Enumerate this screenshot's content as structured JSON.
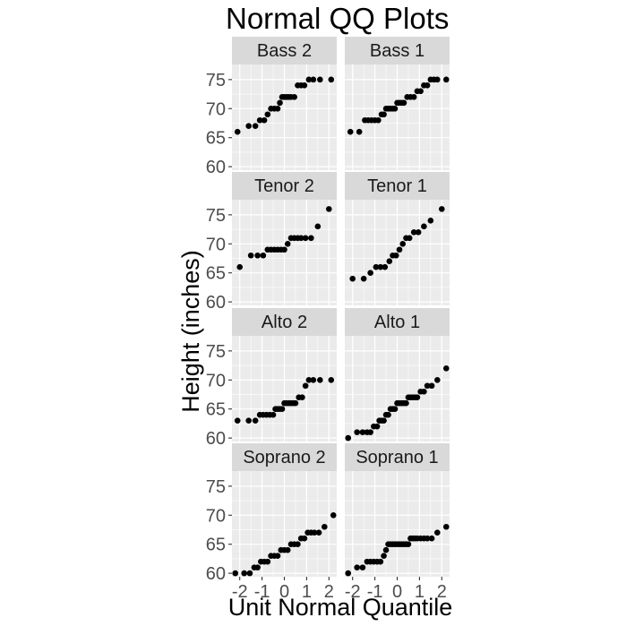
{
  "chart_data": {
    "type": "scatter",
    "title": "Normal QQ Plots",
    "xlabel": "Unit Normal Quantile",
    "ylabel": "Height (inches)",
    "xlim": [
      -2.35,
      2.35
    ],
    "ylim": [
      59.4,
      77.6
    ],
    "x_ticks": [
      -2,
      -1,
      0,
      1,
      2
    ],
    "x_tick_labels": [
      "-2",
      "-1",
      "0",
      "1",
      "2"
    ],
    "y_ticks": [
      60,
      65,
      70,
      75
    ],
    "y_tick_labels": [
      "60",
      "65",
      "70",
      "75"
    ],
    "grid": true,
    "layout": "facets 4 rows x 2 columns, shared axes",
    "colors": {
      "panel_background": "#ebebeb",
      "grid": "#ffffff",
      "strip_background": "#d9d9d9",
      "point": "#000000"
    },
    "facets": [
      {
        "label": "Bass 2",
        "points": [
          {
            "x": -2.1,
            "y": 66
          },
          {
            "x": -1.6,
            "y": 67
          },
          {
            "x": -1.3,
            "y": 67
          },
          {
            "x": -1.1,
            "y": 68
          },
          {
            "x": -0.9,
            "y": 68
          },
          {
            "x": -0.75,
            "y": 69
          },
          {
            "x": -0.6,
            "y": 70
          },
          {
            "x": -0.45,
            "y": 70
          },
          {
            "x": -0.3,
            "y": 70
          },
          {
            "x": -0.2,
            "y": 71
          },
          {
            "x": -0.1,
            "y": 72
          },
          {
            "x": 0.0,
            "y": 72
          },
          {
            "x": 0.1,
            "y": 72
          },
          {
            "x": 0.2,
            "y": 72
          },
          {
            "x": 0.3,
            "y": 72
          },
          {
            "x": 0.45,
            "y": 72
          },
          {
            "x": 0.6,
            "y": 74
          },
          {
            "x": 0.75,
            "y": 74
          },
          {
            "x": 0.9,
            "y": 74
          },
          {
            "x": 1.1,
            "y": 75
          },
          {
            "x": 1.3,
            "y": 75
          },
          {
            "x": 1.6,
            "y": 75
          },
          {
            "x": 2.1,
            "y": 75
          }
        ]
      },
      {
        "label": "Bass 1",
        "points": [
          {
            "x": -2.1,
            "y": 66
          },
          {
            "x": -1.7,
            "y": 66
          },
          {
            "x": -1.45,
            "y": 68
          },
          {
            "x": -1.3,
            "y": 68
          },
          {
            "x": -1.15,
            "y": 68
          },
          {
            "x": -1.0,
            "y": 68
          },
          {
            "x": -0.85,
            "y": 68
          },
          {
            "x": -0.7,
            "y": 69
          },
          {
            "x": -0.6,
            "y": 69
          },
          {
            "x": -0.5,
            "y": 70
          },
          {
            "x": -0.4,
            "y": 70
          },
          {
            "x": -0.3,
            "y": 70
          },
          {
            "x": -0.2,
            "y": 70
          },
          {
            "x": -0.1,
            "y": 70
          },
          {
            "x": 0.0,
            "y": 71
          },
          {
            "x": 0.1,
            "y": 71
          },
          {
            "x": 0.2,
            "y": 71
          },
          {
            "x": 0.3,
            "y": 71
          },
          {
            "x": 0.45,
            "y": 72
          },
          {
            "x": 0.6,
            "y": 72
          },
          {
            "x": 0.75,
            "y": 72
          },
          {
            "x": 0.9,
            "y": 73
          },
          {
            "x": 1.05,
            "y": 73
          },
          {
            "x": 1.2,
            "y": 74
          },
          {
            "x": 1.35,
            "y": 74
          },
          {
            "x": 1.5,
            "y": 75
          },
          {
            "x": 1.65,
            "y": 75
          },
          {
            "x": 1.8,
            "y": 75
          },
          {
            "x": 2.2,
            "y": 75
          }
        ]
      },
      {
        "label": "Tenor 2",
        "points": [
          {
            "x": -2.0,
            "y": 66
          },
          {
            "x": -1.5,
            "y": 68
          },
          {
            "x": -1.2,
            "y": 68
          },
          {
            "x": -0.95,
            "y": 68
          },
          {
            "x": -0.75,
            "y": 69
          },
          {
            "x": -0.6,
            "y": 69
          },
          {
            "x": -0.45,
            "y": 69
          },
          {
            "x": -0.3,
            "y": 69
          },
          {
            "x": -0.15,
            "y": 69
          },
          {
            "x": 0.0,
            "y": 69
          },
          {
            "x": 0.15,
            "y": 70
          },
          {
            "x": 0.3,
            "y": 71
          },
          {
            "x": 0.45,
            "y": 71
          },
          {
            "x": 0.6,
            "y": 71
          },
          {
            "x": 0.75,
            "y": 71
          },
          {
            "x": 0.95,
            "y": 71
          },
          {
            "x": 1.2,
            "y": 71
          },
          {
            "x": 1.5,
            "y": 73
          },
          {
            "x": 2.0,
            "y": 76
          }
        ]
      },
      {
        "label": "Tenor 1",
        "points": [
          {
            "x": -2.0,
            "y": 64
          },
          {
            "x": -1.5,
            "y": 64
          },
          {
            "x": -1.2,
            "y": 65
          },
          {
            "x": -0.95,
            "y": 66
          },
          {
            "x": -0.75,
            "y": 66
          },
          {
            "x": -0.55,
            "y": 66
          },
          {
            "x": -0.35,
            "y": 67
          },
          {
            "x": -0.2,
            "y": 68
          },
          {
            "x": -0.05,
            "y": 68
          },
          {
            "x": 0.1,
            "y": 69
          },
          {
            "x": 0.25,
            "y": 70
          },
          {
            "x": 0.4,
            "y": 71
          },
          {
            "x": 0.55,
            "y": 71
          },
          {
            "x": 0.75,
            "y": 72
          },
          {
            "x": 0.95,
            "y": 72
          },
          {
            "x": 1.2,
            "y": 73
          },
          {
            "x": 1.5,
            "y": 74
          },
          {
            "x": 2.0,
            "y": 76
          }
        ]
      },
      {
        "label": "Alto 2",
        "points": [
          {
            "x": -2.1,
            "y": 63
          },
          {
            "x": -1.6,
            "y": 63
          },
          {
            "x": -1.3,
            "y": 63
          },
          {
            "x": -1.1,
            "y": 64
          },
          {
            "x": -0.95,
            "y": 64
          },
          {
            "x": -0.8,
            "y": 64
          },
          {
            "x": -0.65,
            "y": 64
          },
          {
            "x": -0.5,
            "y": 64
          },
          {
            "x": -0.4,
            "y": 65
          },
          {
            "x": -0.3,
            "y": 65
          },
          {
            "x": -0.2,
            "y": 65
          },
          {
            "x": -0.1,
            "y": 65
          },
          {
            "x": 0.0,
            "y": 66
          },
          {
            "x": 0.1,
            "y": 66
          },
          {
            "x": 0.2,
            "y": 66
          },
          {
            "x": 0.3,
            "y": 66
          },
          {
            "x": 0.4,
            "y": 66
          },
          {
            "x": 0.5,
            "y": 66
          },
          {
            "x": 0.65,
            "y": 67
          },
          {
            "x": 0.8,
            "y": 67
          },
          {
            "x": 0.95,
            "y": 69
          },
          {
            "x": 1.1,
            "y": 70
          },
          {
            "x": 1.3,
            "y": 70
          },
          {
            "x": 1.6,
            "y": 70
          },
          {
            "x": 2.1,
            "y": 70
          }
        ]
      },
      {
        "label": "Alto 1",
        "points": [
          {
            "x": -2.2,
            "y": 60
          },
          {
            "x": -1.8,
            "y": 61
          },
          {
            "x": -1.55,
            "y": 61
          },
          {
            "x": -1.35,
            "y": 61
          },
          {
            "x": -1.2,
            "y": 61
          },
          {
            "x": -1.05,
            "y": 62
          },
          {
            "x": -0.9,
            "y": 62
          },
          {
            "x": -0.8,
            "y": 63
          },
          {
            "x": -0.7,
            "y": 63
          },
          {
            "x": -0.6,
            "y": 63
          },
          {
            "x": -0.5,
            "y": 64
          },
          {
            "x": -0.4,
            "y": 64
          },
          {
            "x": -0.3,
            "y": 65
          },
          {
            "x": -0.2,
            "y": 65
          },
          {
            "x": -0.1,
            "y": 65
          },
          {
            "x": 0.0,
            "y": 66
          },
          {
            "x": 0.1,
            "y": 66
          },
          {
            "x": 0.2,
            "y": 66
          },
          {
            "x": 0.3,
            "y": 66
          },
          {
            "x": 0.4,
            "y": 66
          },
          {
            "x": 0.5,
            "y": 67
          },
          {
            "x": 0.6,
            "y": 67
          },
          {
            "x": 0.7,
            "y": 67
          },
          {
            "x": 0.8,
            "y": 67
          },
          {
            "x": 0.9,
            "y": 67
          },
          {
            "x": 1.05,
            "y": 68
          },
          {
            "x": 1.2,
            "y": 68
          },
          {
            "x": 1.35,
            "y": 69
          },
          {
            "x": 1.55,
            "y": 69
          },
          {
            "x": 1.8,
            "y": 70
          },
          {
            "x": 2.2,
            "y": 72
          }
        ]
      },
      {
        "label": "Soprano 2",
        "points": [
          {
            "x": -2.2,
            "y": 60
          },
          {
            "x": -1.8,
            "y": 60
          },
          {
            "x": -1.55,
            "y": 60
          },
          {
            "x": -1.35,
            "y": 61
          },
          {
            "x": -1.2,
            "y": 61
          },
          {
            "x": -1.05,
            "y": 62
          },
          {
            "x": -0.9,
            "y": 62
          },
          {
            "x": -0.75,
            "y": 62
          },
          {
            "x": -0.6,
            "y": 63
          },
          {
            "x": -0.45,
            "y": 63
          },
          {
            "x": -0.3,
            "y": 63
          },
          {
            "x": -0.15,
            "y": 64
          },
          {
            "x": 0.0,
            "y": 64
          },
          {
            "x": 0.15,
            "y": 64
          },
          {
            "x": 0.3,
            "y": 65
          },
          {
            "x": 0.45,
            "y": 65
          },
          {
            "x": 0.6,
            "y": 65
          },
          {
            "x": 0.75,
            "y": 66
          },
          {
            "x": 0.9,
            "y": 66
          },
          {
            "x": 1.05,
            "y": 67
          },
          {
            "x": 1.2,
            "y": 67
          },
          {
            "x": 1.35,
            "y": 67
          },
          {
            "x": 1.55,
            "y": 67
          },
          {
            "x": 1.8,
            "y": 68
          },
          {
            "x": 2.2,
            "y": 70
          }
        ]
      },
      {
        "label": "Soprano 1",
        "points": [
          {
            "x": -2.2,
            "y": 60
          },
          {
            "x": -1.8,
            "y": 61
          },
          {
            "x": -1.55,
            "y": 61
          },
          {
            "x": -1.35,
            "y": 62
          },
          {
            "x": -1.2,
            "y": 62
          },
          {
            "x": -1.05,
            "y": 62
          },
          {
            "x": -0.9,
            "y": 62
          },
          {
            "x": -0.75,
            "y": 62
          },
          {
            "x": -0.6,
            "y": 63
          },
          {
            "x": -0.5,
            "y": 64
          },
          {
            "x": -0.4,
            "y": 65
          },
          {
            "x": -0.3,
            "y": 65
          },
          {
            "x": -0.2,
            "y": 65
          },
          {
            "x": -0.1,
            "y": 65
          },
          {
            "x": 0.0,
            "y": 65
          },
          {
            "x": 0.1,
            "y": 65
          },
          {
            "x": 0.2,
            "y": 65
          },
          {
            "x": 0.3,
            "y": 65
          },
          {
            "x": 0.4,
            "y": 65
          },
          {
            "x": 0.5,
            "y": 65
          },
          {
            "x": 0.6,
            "y": 66
          },
          {
            "x": 0.7,
            "y": 66
          },
          {
            "x": 0.8,
            "y": 66
          },
          {
            "x": 0.9,
            "y": 66
          },
          {
            "x": 1.05,
            "y": 66
          },
          {
            "x": 1.2,
            "y": 66
          },
          {
            "x": 1.35,
            "y": 66
          },
          {
            "x": 1.55,
            "y": 66
          },
          {
            "x": 1.8,
            "y": 67
          },
          {
            "x": 2.2,
            "y": 68
          }
        ]
      }
    ]
  }
}
